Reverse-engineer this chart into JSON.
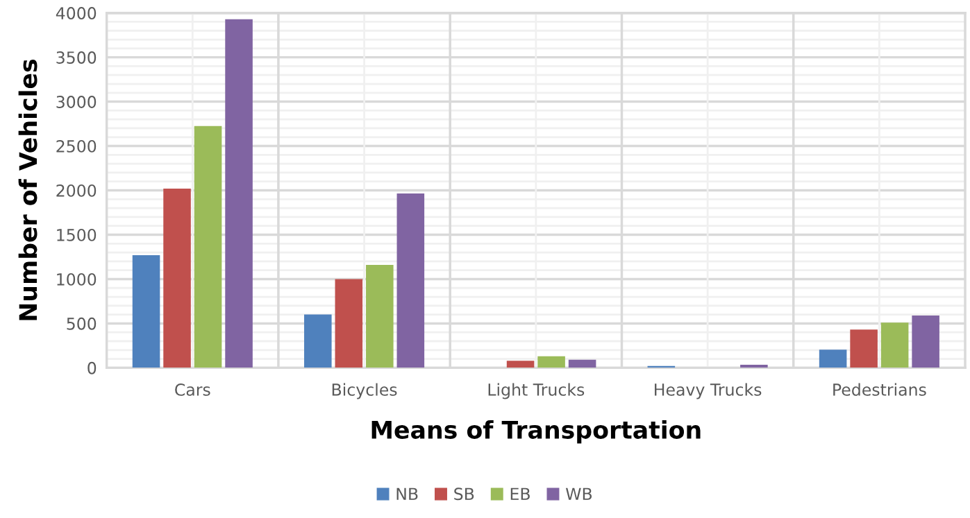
{
  "chart_data": {
    "type": "bar",
    "xlabel": "Means of Transportation",
    "ylabel": "Number of Vehicles",
    "categories": [
      "Cars",
      "Bicycles",
      "Light Trucks",
      "Heavy Trucks",
      "Pedestrians"
    ],
    "series": [
      {
        "name": "NB",
        "color": "#4f81bd",
        "values": [
          1270,
          600,
          0,
          20,
          205
        ]
      },
      {
        "name": "SB",
        "color": "#c0504d",
        "values": [
          2020,
          1000,
          80,
          0,
          430
        ]
      },
      {
        "name": "EB",
        "color": "#9bbb59",
        "values": [
          2725,
          1160,
          130,
          0,
          510
        ]
      },
      {
        "name": "WB",
        "color": "#8064a2",
        "values": [
          3930,
          1965,
          90,
          35,
          590
        ]
      }
    ],
    "ylim": [
      0,
      4000
    ],
    "yticks": [
      0,
      {
        "value": 100,
        "label": null
      },
      {
        "value": 200,
        "label": null
      },
      {
        "value": 300,
        "label": null
      },
      {
        "value": 400,
        "label": null
      },
      500,
      {
        "value": 600,
        "label": null
      },
      {
        "value": 700,
        "label": null
      },
      {
        "value": 800,
        "label": null
      },
      {
        "value": 900,
        "label": null
      },
      1000,
      {
        "value": 1100,
        "label": null
      },
      {
        "value": 1200,
        "label": null
      },
      {
        "value": 1300,
        "label": null
      },
      {
        "value": 1400,
        "label": null
      },
      1500,
      {
        "value": 1600,
        "label": null
      },
      {
        "value": 1700,
        "label": null
      },
      {
        "value": 1800,
        "label": null
      },
      {
        "value": 1900,
        "label": null
      },
      2000,
      {
        "value": 2100,
        "label": null
      },
      {
        "value": 2200,
        "label": null
      },
      {
        "value": 2300,
        "label": null
      },
      {
        "value": 2400,
        "label": null
      },
      2500,
      {
        "value": 2600,
        "label": null
      },
      {
        "value": 2700,
        "label": null
      },
      {
        "value": 2800,
        "label": null
      },
      {
        "value": 2900,
        "label": null
      },
      3000,
      {
        "value": 3100,
        "label": null
      },
      {
        "value": 3200,
        "label": null
      },
      {
        "value": 3300,
        "label": null
      },
      {
        "value": 3400,
        "label": null
      },
      3500,
      {
        "value": 3600,
        "label": null
      },
      {
        "value": 3700,
        "label": null
      },
      {
        "value": 3800,
        "label": null
      },
      {
        "value": 3900,
        "label": null
      },
      4000
    ],
    "grid": true,
    "legend": "bottom"
  }
}
